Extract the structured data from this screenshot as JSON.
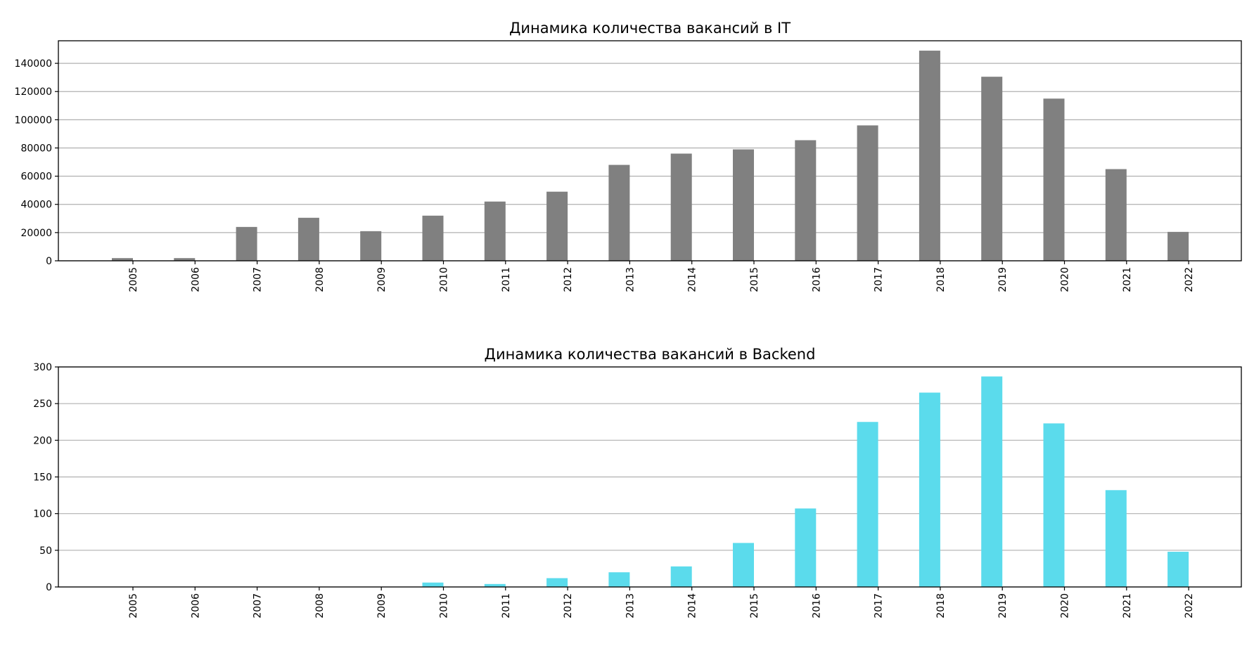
{
  "chart_data": [
    {
      "type": "bar",
      "title": "Динамика количества вакансий в IT",
      "xlabel": "",
      "ylabel": "",
      "categories": [
        "2005",
        "2006",
        "2007",
        "2008",
        "2009",
        "2010",
        "2011",
        "2012",
        "2013",
        "2014",
        "2015",
        "2016",
        "2017",
        "2018",
        "2019",
        "2020",
        "2021",
        "2022"
      ],
      "values": [
        1900,
        1900,
        24000,
        30500,
        21000,
        32000,
        42000,
        49000,
        68000,
        76000,
        79000,
        85500,
        96000,
        149000,
        130500,
        115000,
        65000,
        20500
      ],
      "ylim": [
        0,
        156000
      ],
      "yticks": [
        0,
        20000,
        40000,
        60000,
        80000,
        100000,
        120000,
        140000
      ],
      "color": "#808080",
      "grid": "y",
      "legend": "none"
    },
    {
      "type": "bar",
      "title": "Динамика количества вакансий в Backend",
      "xlabel": "",
      "ylabel": "",
      "categories": [
        "2005",
        "2006",
        "2007",
        "2008",
        "2009",
        "2010",
        "2011",
        "2012",
        "2013",
        "2014",
        "2015",
        "2016",
        "2017",
        "2018",
        "2019",
        "2020",
        "2021",
        "2022"
      ],
      "values": [
        0,
        0,
        0,
        0,
        0,
        6,
        4,
        12,
        20,
        28,
        60,
        107,
        225,
        265,
        287,
        223,
        132,
        48
      ],
      "ylim": [
        0,
        300
      ],
      "yticks": [
        0,
        50,
        100,
        150,
        200,
        250,
        300
      ],
      "color": "#5bdbec",
      "grid": "y",
      "legend": "none"
    }
  ]
}
